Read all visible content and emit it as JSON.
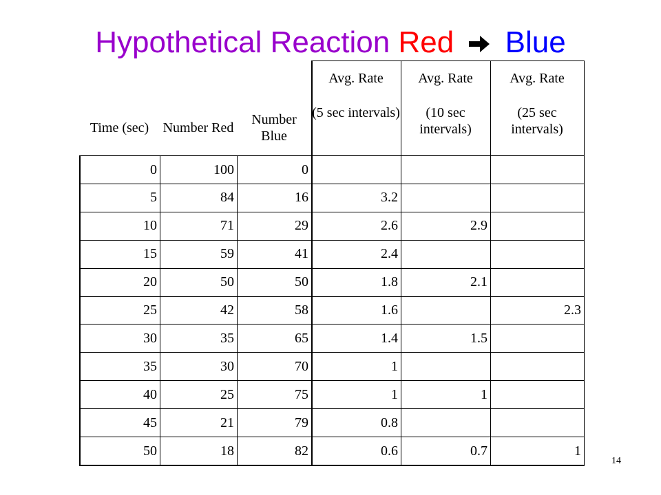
{
  "title": {
    "prefix": "Hypothetical Reaction",
    "reactant": "Red",
    "arrow_icon": "right-arrow-icon",
    "product": "Blue",
    "colors": {
      "prefix": "#9900cc",
      "reactant": "#ff0000",
      "product": "#0000ff"
    }
  },
  "table": {
    "headers": {
      "time": "Time (sec)",
      "red": "Number Red",
      "blue": "Number Blue",
      "rate5_l1": "Avg. Rate",
      "rate5_l2": "(5 sec intervals)",
      "rate10_l1": "Avg. Rate",
      "rate10_l2": "(10 sec intervals)",
      "rate25_l1": "Avg. Rate",
      "rate25_l2": "(25 sec intervals)"
    },
    "rows": [
      {
        "time": "0",
        "red": "100",
        "blue": "0",
        "rate5": "",
        "rate10": "",
        "rate25": ""
      },
      {
        "time": "5",
        "red": "84",
        "blue": "16",
        "rate5": "3.2",
        "rate10": "",
        "rate25": ""
      },
      {
        "time": "10",
        "red": "71",
        "blue": "29",
        "rate5": "2.6",
        "rate10": "2.9",
        "rate25": ""
      },
      {
        "time": "15",
        "red": "59",
        "blue": "41",
        "rate5": "2.4",
        "rate10": "",
        "rate25": ""
      },
      {
        "time": "20",
        "red": "50",
        "blue": "50",
        "rate5": "1.8",
        "rate10": "2.1",
        "rate25": ""
      },
      {
        "time": "25",
        "red": "42",
        "blue": "58",
        "rate5": "1.6",
        "rate10": "",
        "rate25": "2.3"
      },
      {
        "time": "30",
        "red": "35",
        "blue": "65",
        "rate5": "1.4",
        "rate10": "1.5",
        "rate25": ""
      },
      {
        "time": "35",
        "red": "30",
        "blue": "70",
        "rate5": "1",
        "rate10": "",
        "rate25": ""
      },
      {
        "time": "40",
        "red": "25",
        "blue": "75",
        "rate5": "1",
        "rate10": "1",
        "rate25": ""
      },
      {
        "time": "45",
        "red": "21",
        "blue": "79",
        "rate5": "0.8",
        "rate10": "",
        "rate25": ""
      },
      {
        "time": "50",
        "red": "18",
        "blue": "82",
        "rate5": "0.6",
        "rate10": "0.7",
        "rate25": "1"
      }
    ]
  },
  "page_number": "14"
}
